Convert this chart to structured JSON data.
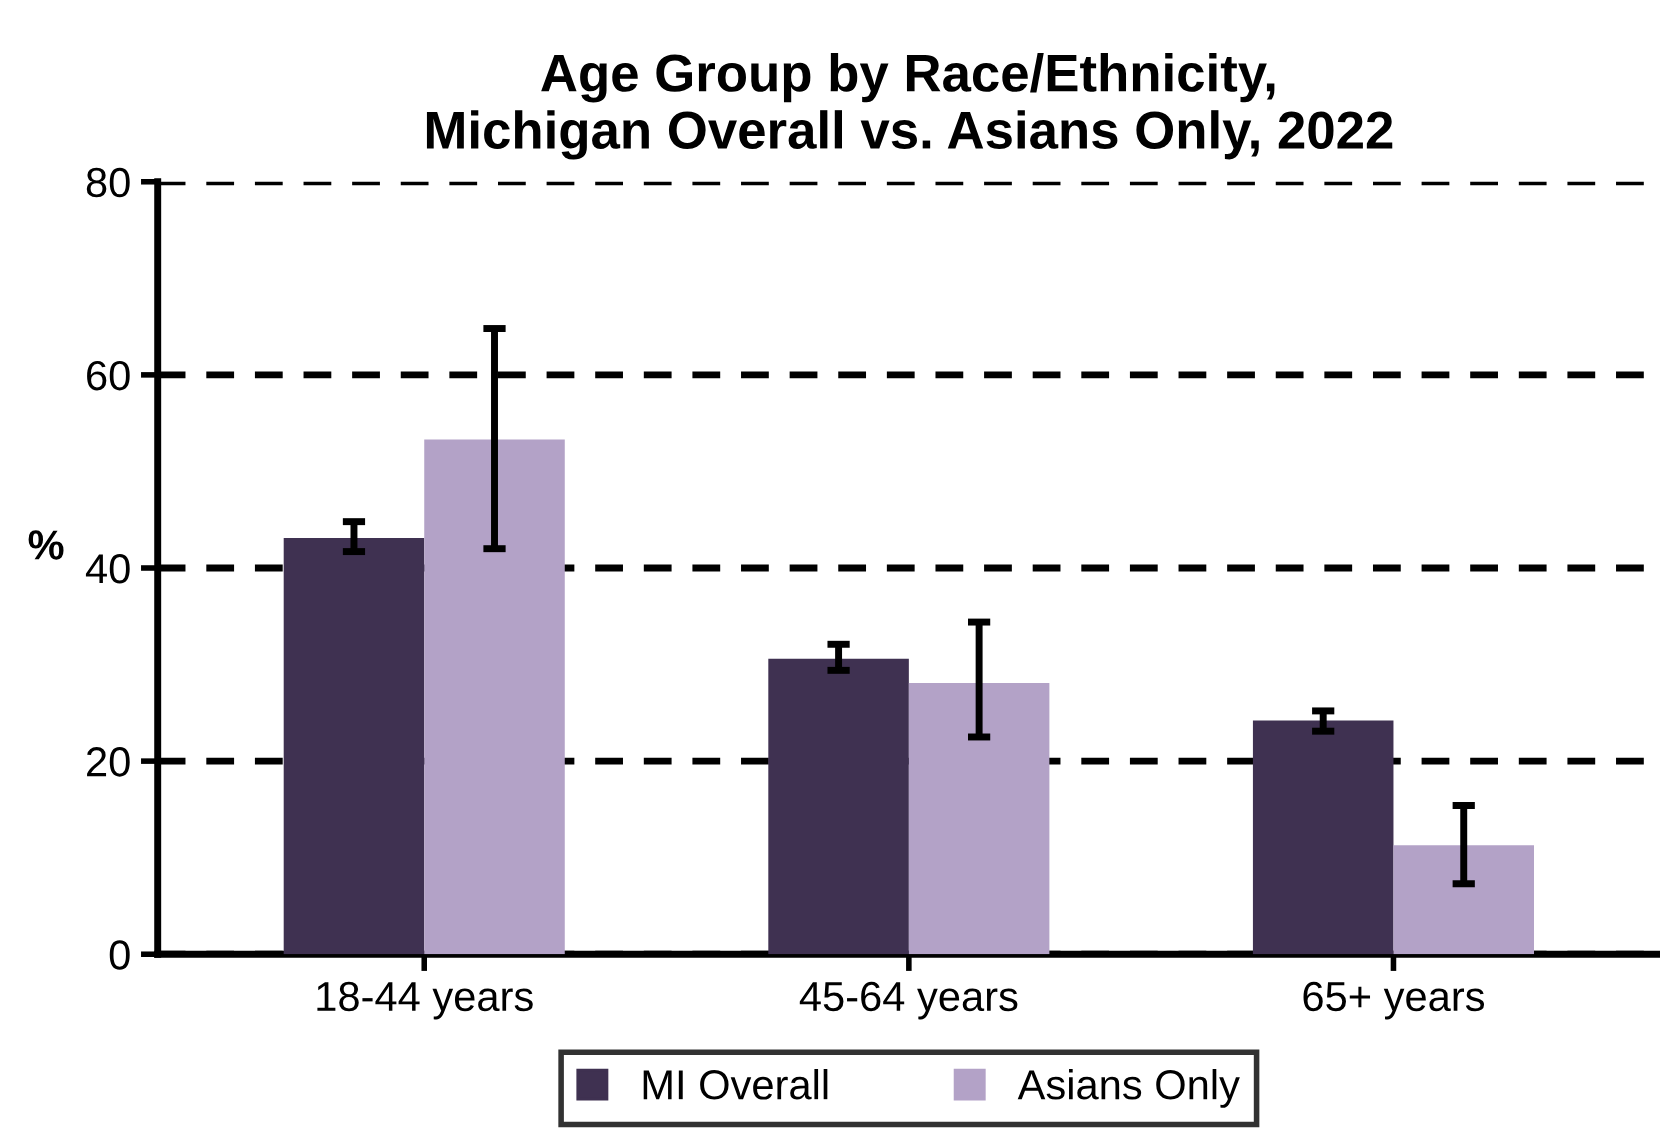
{
  "chart_data": {
    "type": "bar",
    "title": "Age Group by Race/Ethnicity,\nMichigan Overall vs. Asians Only, 2022",
    "ylabel": "%",
    "categories": [
      "18-44 years",
      "45-64 years",
      "65+ years"
    ],
    "series": [
      {
        "name": "MI Overall",
        "color": "#3f3151",
        "values": [
          43.1,
          30.6,
          24.2
        ],
        "errors": [
          [
            41.7,
            44.8
          ],
          [
            29.4,
            32.1
          ],
          [
            23.1,
            25.2
          ]
        ]
      },
      {
        "name": "Asians Only",
        "color": "#b3a2c7",
        "values": [
          53.3,
          28.1,
          11.3
        ],
        "errors": [
          [
            42,
            64.8
          ],
          [
            22.5,
            34.4
          ],
          [
            7.3,
            15.4
          ]
        ]
      }
    ],
    "ylim": [
      0,
      80
    ],
    "yticks": [
      0,
      20,
      40,
      60,
      80
    ],
    "grid": "y",
    "legend": "bottom"
  }
}
